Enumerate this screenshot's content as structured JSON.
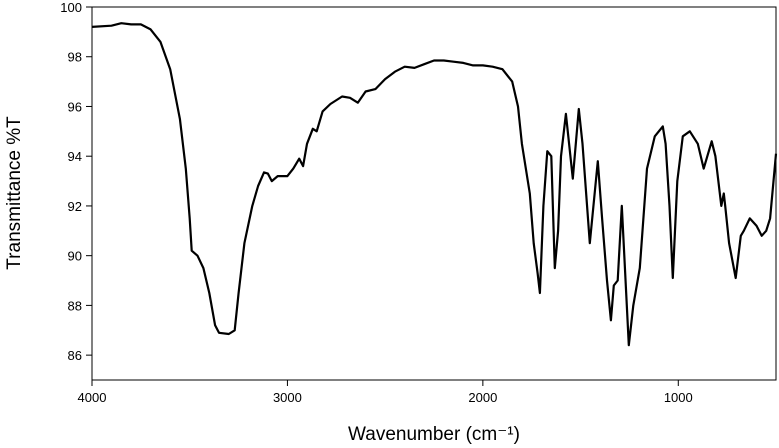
{
  "chart_data": {
    "type": "line",
    "xlabel": "Wavenumber (cm⁻¹)",
    "ylabel": "Transmittance %T",
    "xlim": [
      4000,
      500
    ],
    "ylim": [
      85,
      100
    ],
    "xticks": [
      4000,
      3000,
      2000,
      1000
    ],
    "yticks": [
      86,
      88,
      90,
      92,
      94,
      96,
      98,
      100
    ],
    "grid": false,
    "series": [
      {
        "color": "#000000",
        "x": [
          4000,
          3900,
          3850,
          3800,
          3750,
          3700,
          3650,
          3600,
          3550,
          3520,
          3500,
          3490,
          3460,
          3430,
          3400,
          3370,
          3350,
          3300,
          3270,
          3250,
          3220,
          3180,
          3150,
          3120,
          3100,
          3080,
          3050,
          3000,
          2970,
          2940,
          2920,
          2900,
          2870,
          2850,
          2820,
          2780,
          2720,
          2680,
          2640,
          2600,
          2550,
          2500,
          2450,
          2400,
          2350,
          2300,
          2250,
          2200,
          2150,
          2100,
          2050,
          2000,
          1950,
          1900,
          1850,
          1820,
          1800,
          1760,
          1740,
          1720,
          1708,
          1690,
          1670,
          1650,
          1632,
          1615,
          1600,
          1575,
          1540,
          1509,
          1490,
          1453,
          1412,
          1390,
          1365,
          1345,
          1330,
          1310,
          1289,
          1253,
          1230,
          1197,
          1160,
          1120,
          1079,
          1065,
          1045,
          1028,
          1005,
          977,
          941,
          900,
          870,
          829,
          810,
          780,
          767,
          760,
          740,
          706,
          680,
          665,
          634,
          600,
          573,
          550,
          530,
          500
        ],
        "values": [
          99.2,
          99.25,
          99.35,
          99.3,
          99.3,
          99.1,
          98.6,
          97.5,
          95.5,
          93.5,
          91.5,
          90.2,
          90.0,
          89.5,
          88.5,
          87.2,
          86.9,
          86.85,
          87.0,
          88.5,
          90.5,
          92.0,
          92.8,
          93.35,
          93.3,
          93.0,
          93.2,
          93.2,
          93.5,
          93.9,
          93.6,
          94.5,
          95.1,
          95.0,
          95.8,
          96.1,
          96.4,
          96.35,
          96.15,
          96.6,
          96.7,
          97.1,
          97.4,
          97.6,
          97.55,
          97.7,
          97.85,
          97.85,
          97.8,
          97.75,
          97.65,
          97.65,
          97.6,
          97.5,
          97.0,
          96.0,
          94.5,
          92.5,
          90.5,
          89.3,
          88.5,
          92.0,
          94.2,
          94.0,
          89.5,
          91.0,
          94.0,
          95.7,
          93.1,
          95.9,
          94.5,
          90.5,
          93.8,
          91.5,
          89.0,
          87.4,
          88.8,
          89.0,
          92.0,
          86.4,
          88.0,
          89.5,
          93.5,
          94.8,
          95.2,
          94.5,
          92.0,
          89.1,
          93.0,
          94.8,
          95.0,
          94.5,
          93.5,
          94.6,
          94.0,
          92.0,
          92.5,
          92.0,
          90.5,
          89.1,
          90.8,
          91.0,
          91.5,
          91.2,
          90.8,
          91.0,
          91.5,
          94.1
        ]
      }
    ]
  }
}
